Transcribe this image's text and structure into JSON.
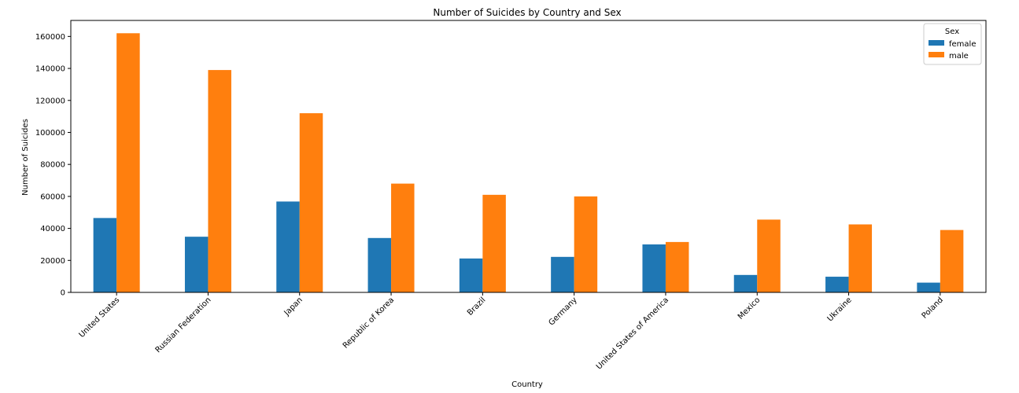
{
  "chart_data": {
    "type": "bar",
    "title": "Number of Suicides by Country and Sex",
    "xlabel": "Country",
    "ylabel": "Number of Suicides",
    "ylim": [
      0,
      170000
    ],
    "yticks": [
      0,
      20000,
      40000,
      60000,
      80000,
      100000,
      120000,
      140000,
      160000
    ],
    "grid": false,
    "legend": {
      "title": "Sex",
      "placement": "top-right"
    },
    "categories": [
      "United States",
      "Russian Federation",
      "Japan",
      "Republic of Korea",
      "Brazil",
      "Germany",
      "United States of America",
      "Mexico",
      "Ukraine",
      "Poland"
    ],
    "series": [
      {
        "name": "female",
        "color": "#1f77b4",
        "values": [
          46500,
          34800,
          56800,
          34000,
          21200,
          22200,
          30000,
          10900,
          9800,
          6100
        ]
      },
      {
        "name": "male",
        "color": "#ff7f0e",
        "values": [
          162000,
          139000,
          112000,
          68000,
          61000,
          60000,
          31500,
          45500,
          42500,
          39000
        ]
      }
    ]
  }
}
